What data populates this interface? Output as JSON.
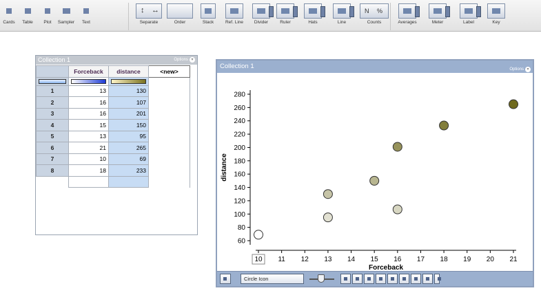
{
  "toolbar": {
    "items": [
      {
        "label": "Cards",
        "icon": "cards-icon"
      },
      {
        "label": "Table",
        "icon": "table-icon"
      },
      {
        "label": "Plot",
        "icon": "plot-icon"
      },
      {
        "label": "Sampler",
        "icon": "sampler-icon"
      },
      {
        "label": "Text",
        "icon": "text-icon"
      },
      {
        "label": "Separate",
        "icon": "separate-icon"
      },
      {
        "label": "Order",
        "icon": "order-icon"
      },
      {
        "label": "Stack",
        "icon": "stack-icon"
      },
      {
        "label": "Ref. Line",
        "icon": "reference-line-icon"
      },
      {
        "label": "Divider",
        "icon": "divider-icon"
      },
      {
        "label": "Ruler",
        "icon": "ruler-icon"
      },
      {
        "label": "Hats",
        "icon": "hats-icon"
      },
      {
        "label": "Line",
        "icon": "line-icon"
      },
      {
        "label": "Counts",
        "icon": "counts-icon",
        "glyphs": [
          "N",
          "%"
        ]
      },
      {
        "label": "Averages",
        "icon": "averages-icon"
      },
      {
        "label": "Meter",
        "icon": "meter-icon"
      },
      {
        "label": "Label",
        "icon": "label-icon"
      },
      {
        "label": "Key",
        "icon": "key-icon"
      }
    ]
  },
  "table_collection": {
    "title": "Collection 1",
    "options_label": "Options",
    "columns": [
      "Forceback",
      "distance",
      "<new>"
    ],
    "rows": [
      {
        "index": "1",
        "forceback": "13",
        "distance": "130"
      },
      {
        "index": "2",
        "forceback": "16",
        "distance": "107"
      },
      {
        "index": "3",
        "forceback": "16",
        "distance": "201"
      },
      {
        "index": "4",
        "forceback": "15",
        "distance": "150"
      },
      {
        "index": "5",
        "forceback": "13",
        "distance": "95"
      },
      {
        "index": "6",
        "forceback": "21",
        "distance": "265"
      },
      {
        "index": "7",
        "forceback": "10",
        "distance": "69"
      },
      {
        "index": "8",
        "forceback": "18",
        "distance": "233"
      }
    ]
  },
  "graph": {
    "title": "Collection 1",
    "options_label": "Options",
    "icon_selector_value": "Circle Icon"
  },
  "chart_data": {
    "type": "scatter",
    "xlabel": "Forceback",
    "ylabel": "distance",
    "x_ticks": [
      10,
      11,
      12,
      13,
      14,
      15,
      16,
      17,
      18,
      19,
      20,
      21
    ],
    "y_ticks": [
      60,
      80,
      100,
      120,
      140,
      160,
      180,
      200,
      220,
      240,
      260,
      280
    ],
    "xlim": [
      10,
      21
    ],
    "ylim": [
      60,
      280
    ],
    "points": [
      {
        "x": 13,
        "y": 130
      },
      {
        "x": 16,
        "y": 107
      },
      {
        "x": 16,
        "y": 201
      },
      {
        "x": 15,
        "y": 150
      },
      {
        "x": 13,
        "y": 95
      },
      {
        "x": 21,
        "y": 265
      },
      {
        "x": 10,
        "y": 69
      },
      {
        "x": 18,
        "y": 233
      }
    ],
    "color_scale": {
      "attribute": "distance",
      "low": "#ffffff",
      "high": "#6f6a1e"
    },
    "grid": false,
    "legend": "none"
  }
}
